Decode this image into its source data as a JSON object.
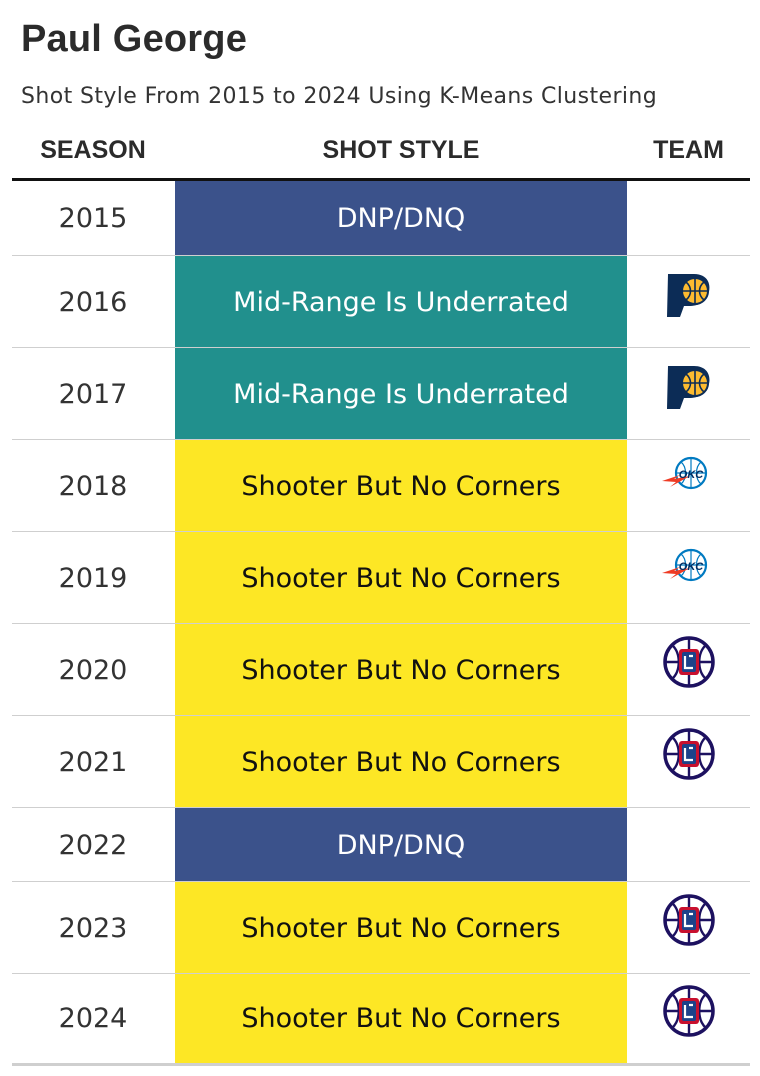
{
  "title": "Paul George",
  "subtitle": "Shot Style From 2015 to 2024 Using K-Means Clustering",
  "headers": {
    "season": "SEASON",
    "shot_style": "SHOT STYLE",
    "team": "TEAM"
  },
  "colors": {
    "DNP/DNQ": "#3b528b",
    "Mid-Range Is Underrated": "#21908d",
    "Shooter But No Corners": "#fde725"
  },
  "text_colors": {
    "DNP/DNQ": "#ffffff",
    "Mid-Range Is Underrated": "#ffffff",
    "Shooter But No Corners": "#111111"
  },
  "chart_data": {
    "type": "table",
    "title": "Paul George",
    "subtitle": "Shot Style From 2015 to 2024 Using K-Means Clustering",
    "columns": [
      "SEASON",
      "SHOT STYLE",
      "TEAM"
    ],
    "rows": [
      {
        "season": "2015",
        "style": "DNP/DNQ",
        "team_icon": ""
      },
      {
        "season": "2016",
        "style": "Mid-Range Is Underrated",
        "team_icon": "pacers-logo-icon"
      },
      {
        "season": "2017",
        "style": "Mid-Range Is Underrated",
        "team_icon": "pacers-logo-icon"
      },
      {
        "season": "2018",
        "style": "Shooter But No Corners",
        "team_icon": "thunder-logo-icon"
      },
      {
        "season": "2019",
        "style": "Shooter But No Corners",
        "team_icon": "thunder-logo-icon"
      },
      {
        "season": "2020",
        "style": "Shooter But No Corners",
        "team_icon": "clippers-logo-icon"
      },
      {
        "season": "2021",
        "style": "Shooter But No Corners",
        "team_icon": "clippers-logo-icon"
      },
      {
        "season": "2022",
        "style": "DNP/DNQ",
        "team_icon": ""
      },
      {
        "season": "2023",
        "style": "Shooter But No Corners",
        "team_icon": "clippers-logo-icon"
      },
      {
        "season": "2024",
        "style": "Shooter But No Corners",
        "team_icon": "clippers-logo-icon"
      }
    ]
  }
}
